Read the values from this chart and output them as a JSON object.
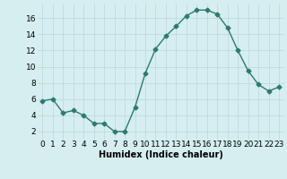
{
  "x": [
    0,
    1,
    2,
    3,
    4,
    5,
    6,
    7,
    8,
    9,
    10,
    11,
    12,
    13,
    14,
    15,
    16,
    17,
    18,
    19,
    20,
    21,
    22,
    23
  ],
  "y": [
    5.8,
    6.0,
    4.3,
    4.6,
    4.0,
    3.0,
    3.0,
    2.0,
    2.0,
    5.0,
    9.2,
    12.2,
    13.8,
    15.0,
    16.3,
    17.0,
    17.0,
    16.5,
    14.8,
    12.0,
    9.5,
    7.8,
    7.0,
    7.5
  ],
  "line_color": "#2d7a6e",
  "marker": "D",
  "markersize": 2.5,
  "linewidth": 1.0,
  "background_color": "#d6eef0",
  "grid_color": "#b8d8dc",
  "xlabel": "Humidex (Indice chaleur)",
  "xlabel_fontsize": 7,
  "ylabel_ticks": [
    2,
    4,
    6,
    8,
    10,
    12,
    14,
    16
  ],
  "ylim": [
    1.0,
    17.8
  ],
  "xlim": [
    -0.5,
    23.5
  ],
  "tick_fontsize": 6.5
}
